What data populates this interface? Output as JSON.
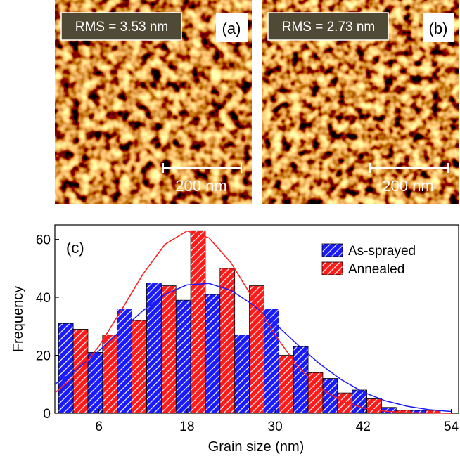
{
  "panels": [
    {
      "rms": "RMS = 3.53 nm",
      "label": "(a)",
      "scale": "200 nm"
    },
    {
      "rms": "RMS = 2.73 nm",
      "label": "(b)",
      "scale": "200 nm"
    }
  ],
  "chart_data": {
    "type": "histogram",
    "panel_label": "(c)",
    "x_label": "Grain size (nm)",
    "y_label": "Frequency",
    "bins": [
      0.5,
      4.5,
      8.5,
      12.5,
      16.5,
      20.5,
      24.5,
      28.5,
      32.5,
      36.5,
      40.5,
      44.5,
      48.5,
      52.5
    ],
    "series": [
      {
        "name": "As-sprayed",
        "color": "#1a1aff",
        "values": [
          31,
          21,
          36,
          45,
          39,
          41,
          27,
          36,
          23,
          12,
          8,
          2,
          1
        ]
      },
      {
        "name": "Annealed",
        "color": "#ff1a1a",
        "values": [
          29,
          27,
          32,
          44,
          63,
          50,
          44,
          20,
          14,
          7,
          5,
          1,
          1
        ]
      }
    ],
    "fit_x": [
      0,
      3,
      6,
      9,
      12,
      15,
      18,
      21,
      24,
      27,
      30,
      33,
      36,
      39,
      42,
      45,
      48,
      51,
      54
    ],
    "fits": [
      {
        "color": "#1a1aff",
        "values": [
          10.0,
          15.2,
          21.5,
          28.6,
          35.4,
          41.0,
          44.3,
          44.8,
          42.4,
          37.4,
          30.9,
          23.8,
          17.2,
          11.6,
          7.3,
          4.3,
          2.4,
          1.2,
          0.6
        ]
      },
      {
        "color": "#ff1a1a",
        "values": [
          7.0,
          13.5,
          23.1,
          35.3,
          48.0,
          58.3,
          62.9,
          60.5,
          51.9,
          39.6,
          27.0,
          16.4,
          8.8,
          4.3,
          1.8,
          0.7,
          0.2,
          0.1,
          0.0
        ]
      }
    ],
    "xlim": [
      0,
      55
    ],
    "xticks": [
      6,
      18,
      30,
      42,
      54
    ],
    "ylim": [
      0,
      65
    ],
    "yticks": [
      0,
      20,
      40,
      60
    ],
    "legend": "top-right"
  }
}
